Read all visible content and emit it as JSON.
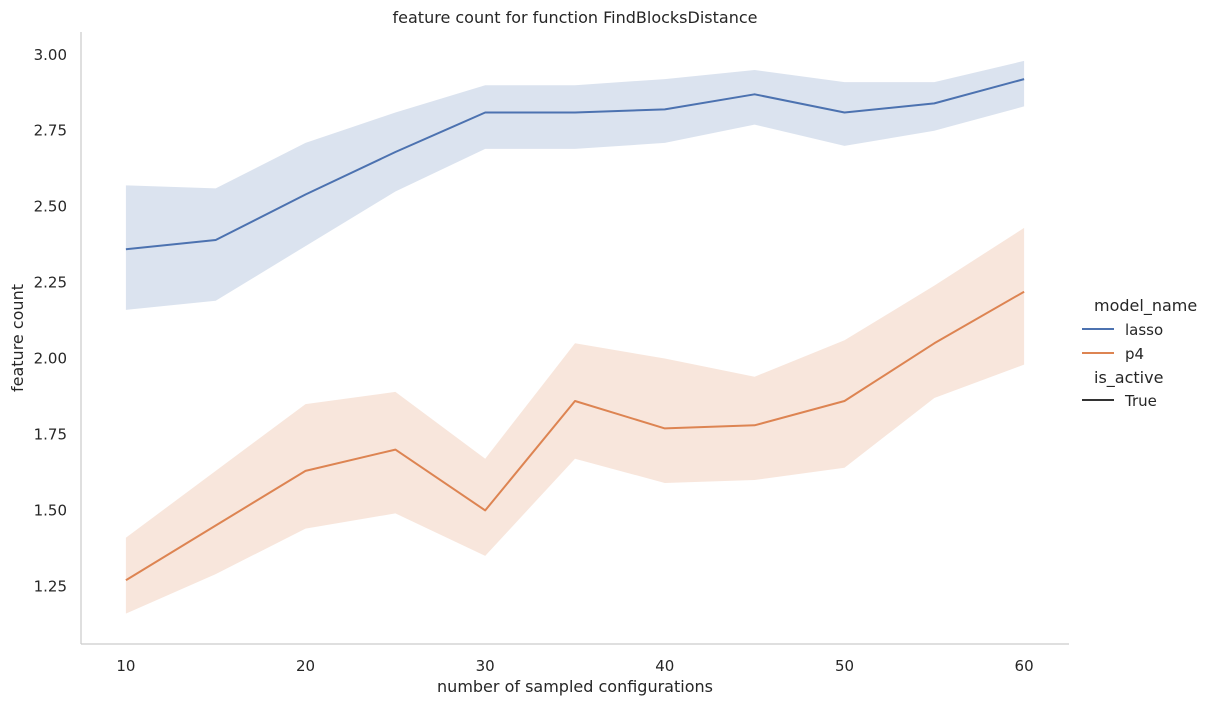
{
  "chart_data": {
    "type": "line",
    "title": "feature count for function FindBlocksDistance",
    "xlabel": "number of sampled configurations",
    "ylabel": "feature count",
    "xlim": [
      7.5,
      62.5
    ],
    "ylim": [
      1.06,
      3.075
    ],
    "xticks": [
      10,
      20,
      30,
      40,
      50,
      60
    ],
    "yticks": [
      1.25,
      1.5,
      1.75,
      2.0,
      2.25,
      2.5,
      2.75,
      3.0
    ],
    "ytick_labels": [
      "1.25",
      "1.50",
      "1.75",
      "2.00",
      "2.25",
      "2.50",
      "2.75",
      "3.00"
    ],
    "grid": false,
    "legend_placement": "right",
    "legend": {
      "groups": [
        {
          "title": "model_name",
          "entries": [
            {
              "label": "lasso",
              "color": "#4c72b0"
            },
            {
              "label": "p4",
              "color": "#dd8452"
            }
          ]
        },
        {
          "title": "is_active",
          "entries": [
            {
              "label": "True",
              "color": "#333333"
            }
          ]
        }
      ]
    },
    "x": [
      10,
      15,
      20,
      25,
      30,
      35,
      40,
      45,
      50,
      55,
      60
    ],
    "series": [
      {
        "name": "lasso",
        "color": "#4c72b0",
        "values": [
          2.36,
          2.39,
          2.54,
          2.68,
          2.81,
          2.81,
          2.82,
          2.87,
          2.81,
          2.84,
          2.92
        ],
        "ci_lower": [
          2.16,
          2.19,
          2.37,
          2.55,
          2.69,
          2.69,
          2.71,
          2.77,
          2.7,
          2.75,
          2.83
        ],
        "ci_upper": [
          2.57,
          2.56,
          2.71,
          2.81,
          2.9,
          2.9,
          2.92,
          2.95,
          2.91,
          2.91,
          2.98
        ]
      },
      {
        "name": "p4",
        "color": "#dd8452",
        "values": [
          1.27,
          1.45,
          1.63,
          1.7,
          1.5,
          1.86,
          1.77,
          1.78,
          1.86,
          2.05,
          2.22
        ],
        "ci_lower": [
          1.16,
          1.29,
          1.44,
          1.49,
          1.35,
          1.67,
          1.59,
          1.6,
          1.64,
          1.87,
          1.98
        ],
        "ci_upper": [
          1.41,
          1.63,
          1.85,
          1.89,
          1.67,
          2.05,
          2.0,
          1.94,
          2.06,
          2.24,
          2.43
        ]
      }
    ]
  }
}
